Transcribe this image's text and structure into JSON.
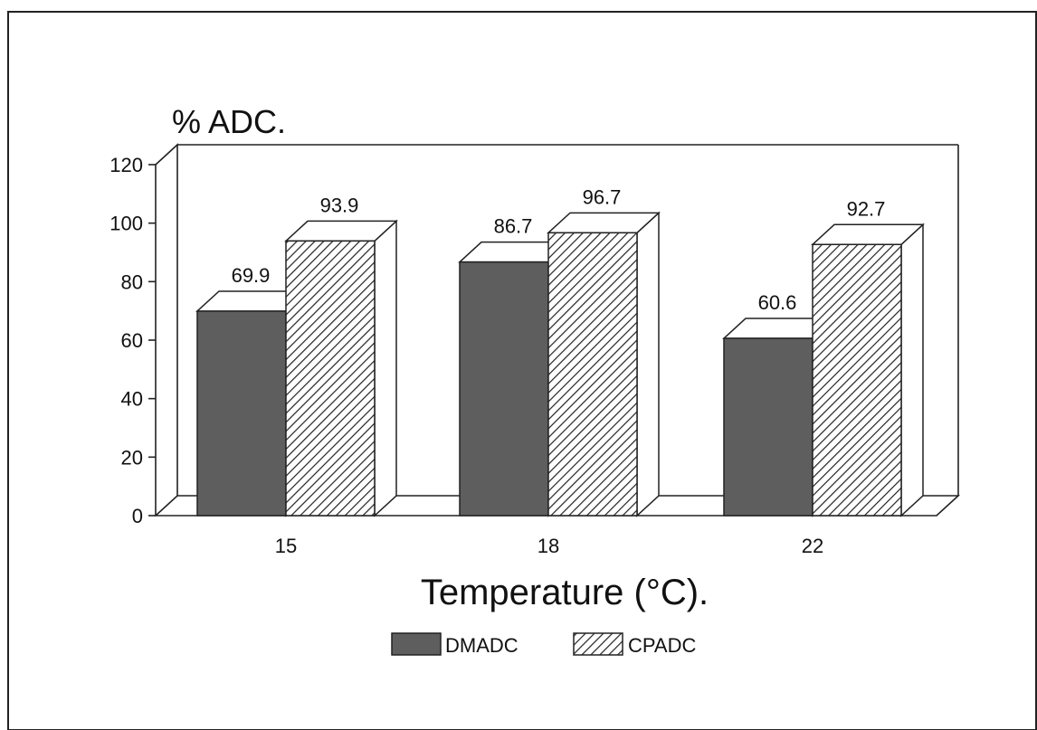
{
  "chart_data": {
    "type": "bar",
    "title": "",
    "ylabel": "% ADC.",
    "xlabel": "Temperature (°C).",
    "categories": [
      "15",
      "18",
      "22"
    ],
    "ylim": [
      0,
      120
    ],
    "yticks": [
      0,
      20,
      40,
      60,
      80,
      100,
      120
    ],
    "series": [
      {
        "name": "DMADC",
        "values": [
          69.9,
          86.7,
          60.6
        ],
        "labels": [
          "69.9",
          "86.7",
          "60.6"
        ],
        "fill": "solid",
        "color": "#5e5e5e"
      },
      {
        "name": "CPADC",
        "values": [
          93.9,
          96.7,
          92.7
        ],
        "labels": [
          "93.9",
          "96.7",
          "92.7"
        ],
        "fill": "diagonal-hatch",
        "color": "#222222"
      }
    ],
    "grid": false,
    "style": "3d",
    "legend_position": "bottom"
  }
}
